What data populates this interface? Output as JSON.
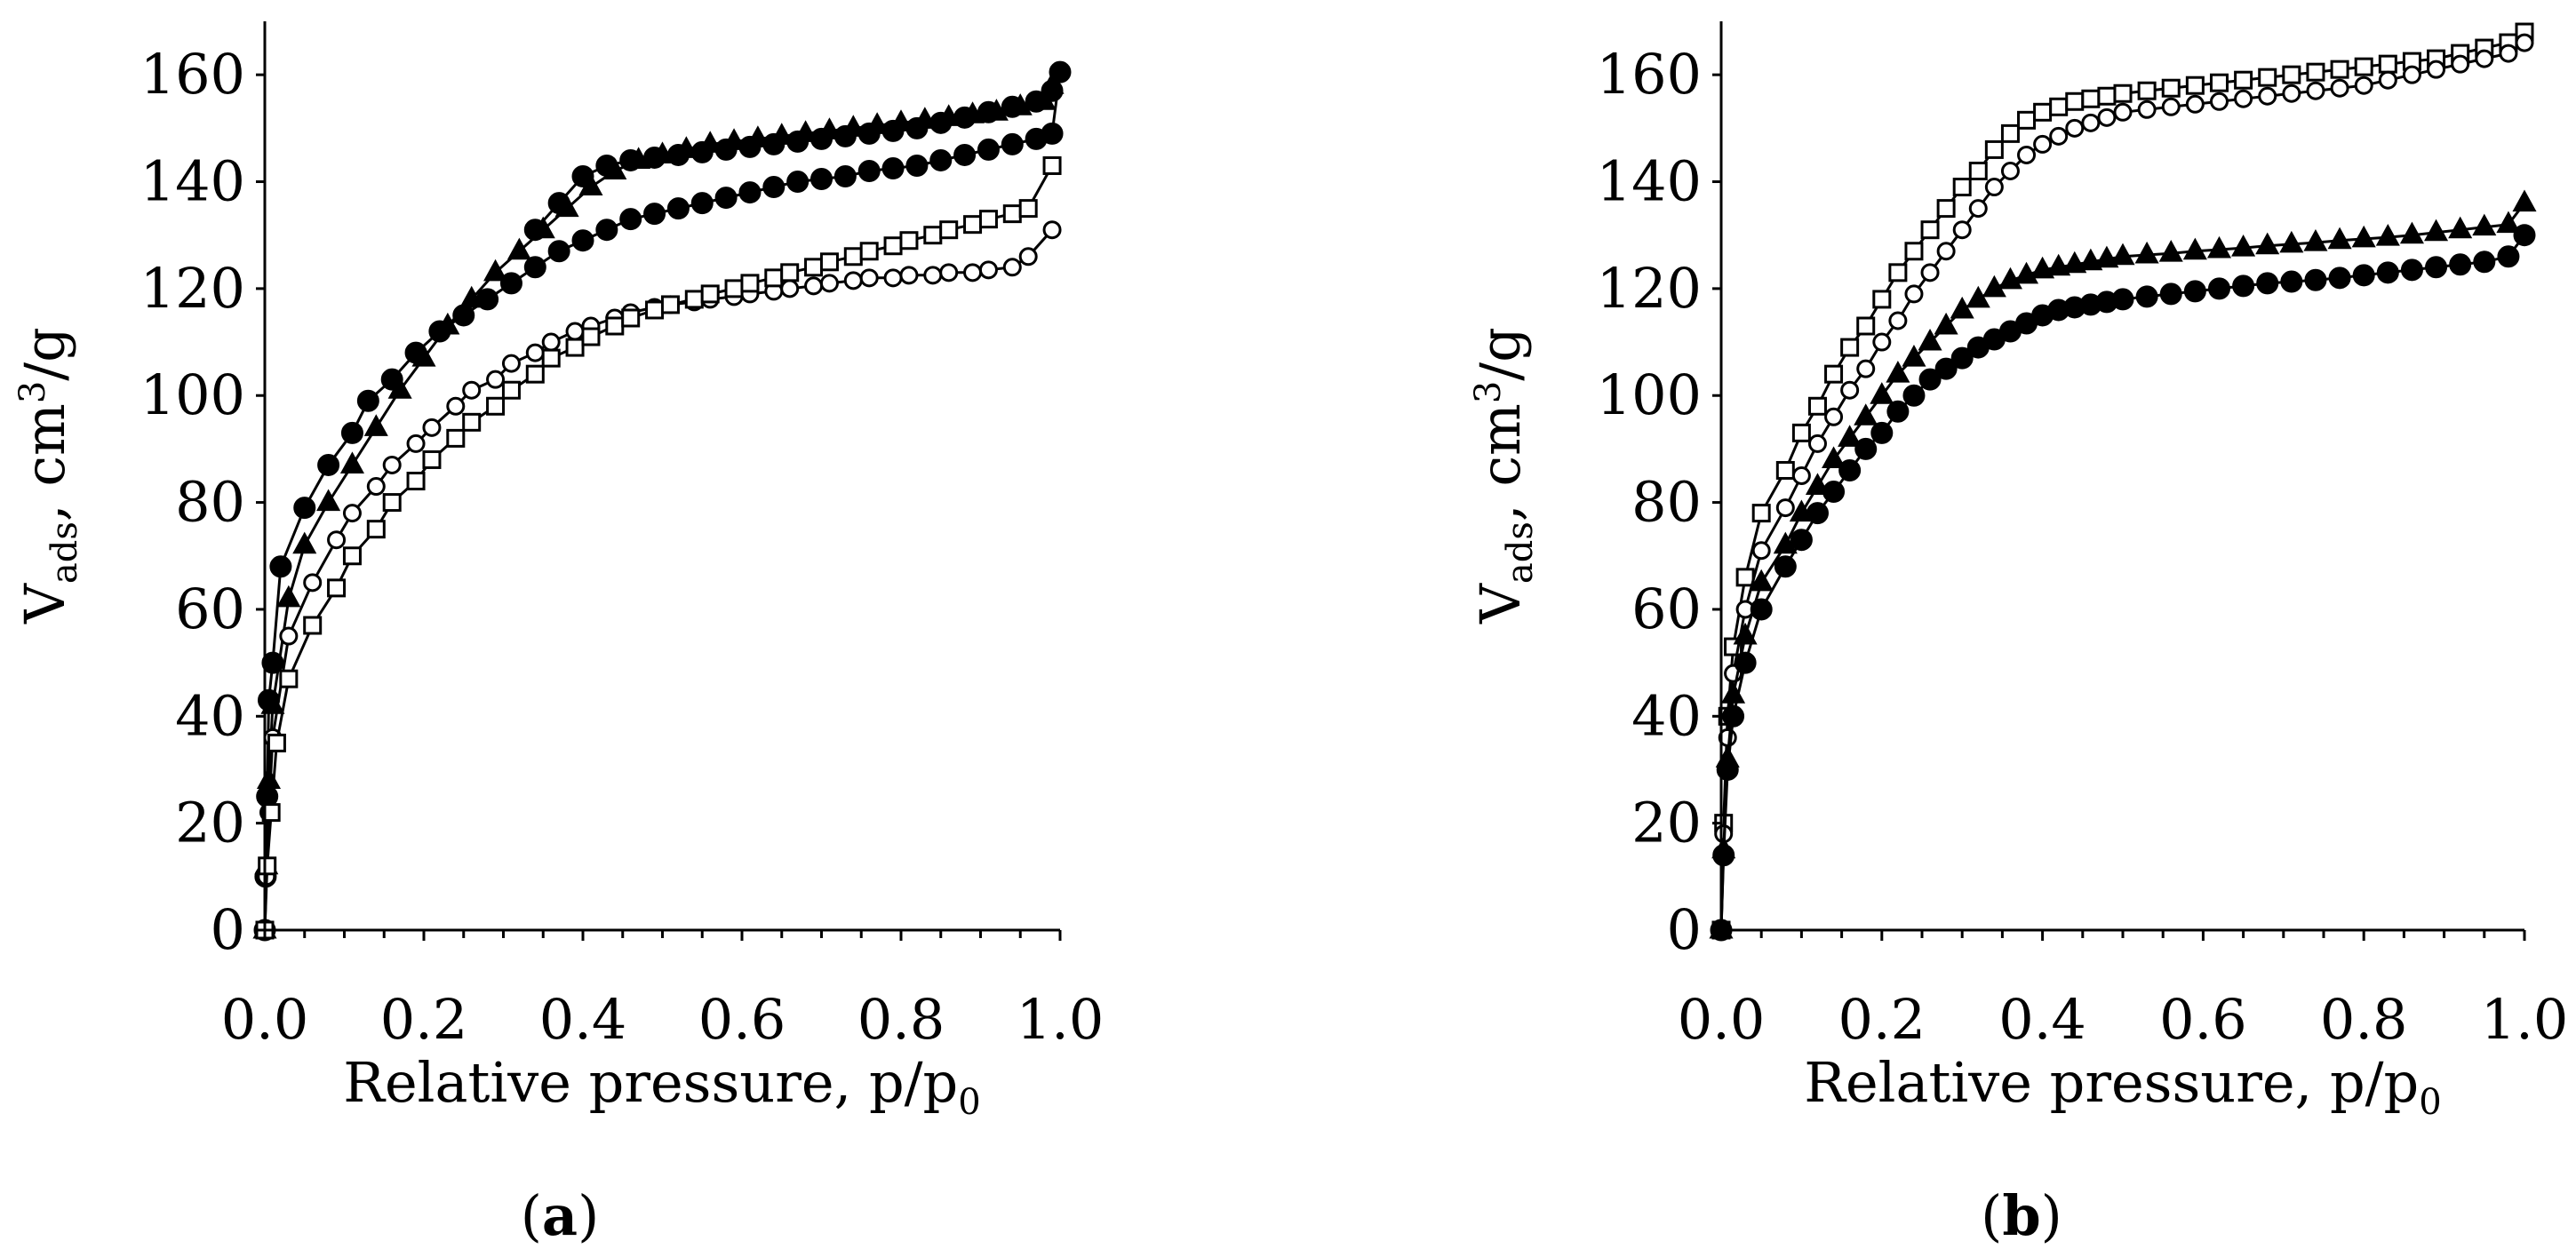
{
  "figure": {
    "panel_a_label": "a",
    "panel_b_label": "b"
  },
  "chart_data": [
    {
      "id": "a",
      "type": "scatter",
      "panel_label": "(a)",
      "xlabel": "Relative pressure, p/p",
      "xlabel_sub": "0",
      "ylabel_main": "V",
      "ylabel_sub": "ads",
      "ylabel_unit_a": ", cm",
      "ylabel_sup": "3",
      "ylabel_unit_b": "/g",
      "xlim": [
        0,
        1.0
      ],
      "ylim": [
        0,
        170
      ],
      "xticks": [
        0.0,
        0.2,
        0.4,
        0.6,
        0.8,
        1.0
      ],
      "xtick_labels": [
        "0.0",
        "0.2",
        "0.4",
        "0.6",
        "0.8",
        "1.0"
      ],
      "yticks": [
        0,
        20,
        40,
        60,
        80,
        100,
        120,
        140,
        160
      ],
      "ytick_labels": [
        "0",
        "20",
        "40",
        "60",
        "80",
        "100",
        "120",
        "140",
        "160"
      ],
      "grid": false,
      "series": [
        {
          "name": "filled circles",
          "marker": "circle",
          "fill": "#000000",
          "x": [
            0,
            0.001,
            0.003,
            0.005,
            0.01,
            0.02,
            0.05,
            0.08,
            0.11,
            0.13,
            0.16,
            0.19,
            0.22,
            0.25,
            0.28,
            0.31,
            0.34,
            0.37,
            0.4,
            0.43,
            0.46,
            0.49,
            0.52,
            0.55,
            0.58,
            0.61,
            0.64,
            0.67,
            0.7,
            0.73,
            0.76,
            0.79,
            0.82,
            0.85,
            0.88,
            0.91,
            0.94,
            0.97,
            0.99,
            1.0,
            0.99,
            0.97,
            0.94,
            0.91,
            0.88,
            0.85,
            0.82,
            0.79,
            0.76,
            0.73,
            0.7,
            0.67,
            0.64,
            0.61,
            0.58,
            0.55,
            0.52,
            0.49,
            0.46,
            0.43,
            0.4,
            0.37,
            0.34
          ],
          "y": [
            0,
            10,
            25,
            43,
            50,
            68,
            79,
            87,
            93,
            99,
            103,
            108,
            112,
            115,
            118,
            121,
            124,
            127,
            129,
            131,
            133,
            134,
            135,
            136,
            137,
            138,
            139,
            140,
            140.5,
            141,
            142,
            142.5,
            143,
            144,
            145,
            146,
            147,
            148,
            149,
            160.5,
            157,
            155,
            154,
            153,
            152,
            151,
            150,
            149.5,
            149,
            148.5,
            148,
            147.5,
            147,
            146.5,
            146,
            145.5,
            145,
            144.5,
            144,
            143,
            141,
            136,
            131
          ]
        },
        {
          "name": "filled triangles",
          "marker": "triangle",
          "fill": "#000000",
          "x": [
            0,
            0.002,
            0.005,
            0.01,
            0.03,
            0.05,
            0.08,
            0.11,
            0.14,
            0.17,
            0.2,
            0.23,
            0.26,
            0.29,
            0.32,
            0.35,
            0.38,
            0.41,
            0.44,
            0.47,
            0.5,
            0.53,
            0.56,
            0.59,
            0.62,
            0.65,
            0.68,
            0.71,
            0.74,
            0.77,
            0.8,
            0.83,
            0.86,
            0.89,
            0.92,
            0.95,
            0.98,
            0.99
          ],
          "y": [
            0,
            12,
            28,
            42,
            62,
            72,
            80,
            87,
            94,
            101,
            107,
            113,
            118,
            123,
            127,
            131,
            135,
            139,
            142,
            144,
            145,
            146,
            147,
            147.5,
            148,
            148.5,
            149,
            149.5,
            150,
            150.5,
            151,
            151.5,
            152,
            152.5,
            153,
            154,
            155,
            158
          ]
        },
        {
          "name": "open circles",
          "marker": "circle",
          "fill": "#ffffff",
          "x": [
            0,
            0.002,
            0.005,
            0.01,
            0.03,
            0.06,
            0.09,
            0.11,
            0.14,
            0.16,
            0.19,
            0.21,
            0.24,
            0.26,
            0.29,
            0.31,
            0.34,
            0.36,
            0.39,
            0.41,
            0.44,
            0.46,
            0.49,
            0.51,
            0.54,
            0.56,
            0.59,
            0.61,
            0.64,
            0.66,
            0.69,
            0.71,
            0.74,
            0.76,
            0.79,
            0.81,
            0.84,
            0.86,
            0.89,
            0.91,
            0.94,
            0.96,
            0.99
          ],
          "y": [
            0,
            10,
            22,
            36,
            55,
            65,
            73,
            78,
            83,
            87,
            91,
            94,
            98,
            101,
            103,
            106,
            108,
            110,
            112,
            113,
            114.5,
            115.5,
            116.5,
            117,
            117.5,
            118,
            118.5,
            119,
            119.5,
            120,
            120.5,
            121,
            121.5,
            122,
            122,
            122.5,
            122.5,
            123,
            123,
            123.5,
            124,
            126,
            131
          ]
        },
        {
          "name": "open squares",
          "marker": "square",
          "fill": "#ffffff",
          "x": [
            0,
            0.003,
            0.008,
            0.015,
            0.03,
            0.06,
            0.09,
            0.11,
            0.14,
            0.16,
            0.19,
            0.21,
            0.24,
            0.26,
            0.29,
            0.31,
            0.34,
            0.36,
            0.39,
            0.41,
            0.44,
            0.46,
            0.49,
            0.51,
            0.54,
            0.56,
            0.59,
            0.61,
            0.64,
            0.66,
            0.69,
            0.71,
            0.74,
            0.76,
            0.79,
            0.81,
            0.84,
            0.86,
            0.89,
            0.91,
            0.94,
            0.96,
            0.99
          ],
          "y": [
            0,
            12,
            22,
            35,
            47,
            57,
            64,
            70,
            75,
            80,
            84,
            88,
            92,
            95,
            98,
            101,
            104,
            107,
            109,
            111,
            113,
            114.5,
            116,
            117,
            118,
            119,
            120,
            121,
            122,
            123,
            124,
            125,
            126,
            127,
            128,
            129,
            130,
            131,
            132,
            133,
            134,
            135,
            143
          ]
        }
      ]
    },
    {
      "id": "b",
      "type": "scatter",
      "panel_label": "(b)",
      "xlabel": "Relative pressure, p/p",
      "xlabel_sub": "0",
      "ylabel_main": "V",
      "ylabel_sub": "ads",
      "ylabel_unit_a": ", cm",
      "ylabel_sup": "3",
      "ylabel_unit_b": "/g",
      "xlim": [
        0,
        1.0
      ],
      "ylim": [
        0,
        170
      ],
      "xticks": [
        0.0,
        0.2,
        0.4,
        0.6,
        0.8,
        1.0
      ],
      "xtick_labels": [
        "0.0",
        "0.2",
        "0.4",
        "0.6",
        "0.8",
        "1.0"
      ],
      "yticks": [
        0,
        20,
        40,
        60,
        80,
        100,
        120,
        140,
        160
      ],
      "ytick_labels": [
        "0",
        "20",
        "40",
        "60",
        "80",
        "100",
        "120",
        "140",
        "160"
      ],
      "grid": false,
      "series": [
        {
          "name": "open squares",
          "marker": "square",
          "fill": "#ffffff",
          "x": [
            0,
            0.003,
            0.008,
            0.015,
            0.03,
            0.05,
            0.08,
            0.1,
            0.12,
            0.14,
            0.16,
            0.18,
            0.2,
            0.22,
            0.24,
            0.26,
            0.28,
            0.3,
            0.32,
            0.34,
            0.36,
            0.38,
            0.4,
            0.42,
            0.44,
            0.46,
            0.48,
            0.5,
            0.53,
            0.56,
            0.59,
            0.62,
            0.65,
            0.68,
            0.71,
            0.74,
            0.77,
            0.8,
            0.83,
            0.86,
            0.89,
            0.92,
            0.95,
            0.98,
            1.0
          ],
          "y": [
            0,
            20,
            40,
            53,
            66,
            78,
            86,
            93,
            98,
            104,
            109,
            113,
            118,
            123,
            127,
            131,
            135,
            139,
            142,
            146,
            149,
            151.5,
            153,
            154,
            155,
            155.5,
            156,
            156.5,
            157,
            157.5,
            158,
            158.5,
            159,
            159.5,
            160,
            160.5,
            161,
            161.5,
            162,
            162.5,
            163,
            164,
            165,
            166,
            168
          ]
        },
        {
          "name": "open circles",
          "marker": "circle",
          "fill": "#ffffff",
          "x": [
            0,
            0.003,
            0.008,
            0.015,
            0.03,
            0.05,
            0.08,
            0.1,
            0.12,
            0.14,
            0.16,
            0.18,
            0.2,
            0.22,
            0.24,
            0.26,
            0.28,
            0.3,
            0.32,
            0.34,
            0.36,
            0.38,
            0.4,
            0.42,
            0.44,
            0.46,
            0.48,
            0.5,
            0.53,
            0.56,
            0.59,
            0.62,
            0.65,
            0.68,
            0.71,
            0.74,
            0.77,
            0.8,
            0.83,
            0.86,
            0.89,
            0.92,
            0.95,
            0.98,
            1.0
          ],
          "y": [
            0,
            18,
            36,
            48,
            60,
            71,
            79,
            85,
            91,
            96,
            101,
            105,
            110,
            114,
            119,
            123,
            127,
            131,
            135,
            139,
            142,
            145,
            147,
            148.5,
            150,
            151,
            152,
            153,
            153.5,
            154,
            154.5,
            155,
            155.5,
            156,
            156.5,
            157,
            157.5,
            158,
            159,
            160,
            161,
            162,
            163,
            164,
            166
          ]
        },
        {
          "name": "filled triangles",
          "marker": "triangle",
          "fill": "#000000",
          "x": [
            0,
            0.003,
            0.008,
            0.015,
            0.03,
            0.05,
            0.08,
            0.1,
            0.12,
            0.14,
            0.16,
            0.18,
            0.2,
            0.22,
            0.24,
            0.26,
            0.28,
            0.3,
            0.32,
            0.34,
            0.36,
            0.38,
            0.4,
            0.42,
            0.44,
            0.46,
            0.48,
            0.5,
            0.53,
            0.56,
            0.59,
            0.62,
            0.65,
            0.68,
            0.71,
            0.74,
            0.77,
            0.8,
            0.83,
            0.86,
            0.89,
            0.92,
            0.95,
            0.98,
            1.0
          ],
          "y": [
            0,
            15,
            32,
            44,
            55,
            65,
            72,
            78,
            83,
            88,
            92,
            96,
            100,
            104,
            107,
            110,
            113,
            116,
            118,
            120,
            121.5,
            122.5,
            123.5,
            124,
            124.5,
            125,
            125.5,
            126,
            126.3,
            126.6,
            127,
            127.3,
            127.6,
            128,
            128.3,
            128.6,
            129,
            129.3,
            129.6,
            130,
            130.5,
            131,
            131.5,
            132,
            136
          ]
        },
        {
          "name": "filled circles",
          "marker": "circle",
          "fill": "#000000",
          "x": [
            0,
            0.003,
            0.008,
            0.015,
            0.03,
            0.05,
            0.08,
            0.1,
            0.12,
            0.14,
            0.16,
            0.18,
            0.2,
            0.22,
            0.24,
            0.26,
            0.28,
            0.3,
            0.32,
            0.34,
            0.36,
            0.38,
            0.4,
            0.42,
            0.44,
            0.46,
            0.48,
            0.5,
            0.53,
            0.56,
            0.59,
            0.62,
            0.65,
            0.68,
            0.71,
            0.74,
            0.77,
            0.8,
            0.83,
            0.86,
            0.89,
            0.92,
            0.95,
            0.98,
            1.0
          ],
          "y": [
            0,
            14,
            30,
            40,
            50,
            60,
            68,
            73,
            78,
            82,
            86,
            90,
            93,
            97,
            100,
            103,
            105,
            107,
            109,
            110.5,
            112,
            113.5,
            115,
            116,
            116.5,
            117,
            117.5,
            118,
            118.5,
            119,
            119.5,
            120,
            120.5,
            121,
            121.3,
            121.6,
            122,
            122.5,
            123,
            123.5,
            124,
            124.5,
            125,
            126,
            130
          ]
        }
      ]
    }
  ]
}
